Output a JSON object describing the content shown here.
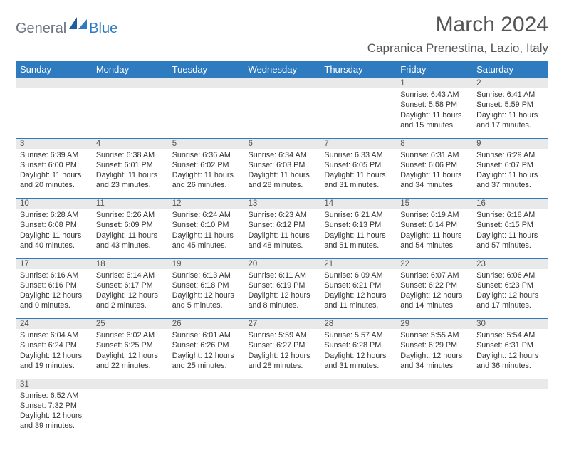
{
  "branding": {
    "word1": "General",
    "word2": "Blue"
  },
  "header": {
    "month_title": "March 2024",
    "location": "Capranica Prenestina, Lazio, Italy"
  },
  "colors": {
    "header_bg": "#2f7bbf",
    "header_text": "#ffffff",
    "daynum_bg": "#e9e9e9",
    "border": "#2f7bbf",
    "body_text": "#333333",
    "logo_gray": "#6b7280",
    "logo_blue": "#2f7bbf",
    "page_bg": "#ffffff"
  },
  "typography": {
    "title_fontsize": 30,
    "location_fontsize": 17,
    "weekday_fontsize": 13,
    "daynum_fontsize": 11.5,
    "cell_fontsize": 10.8,
    "font_family": "Arial"
  },
  "weekdays": [
    "Sunday",
    "Monday",
    "Tuesday",
    "Wednesday",
    "Thursday",
    "Friday",
    "Saturday"
  ],
  "weeks": [
    {
      "nums": [
        "",
        "",
        "",
        "",
        "",
        "1",
        "2"
      ],
      "cells": [
        null,
        null,
        null,
        null,
        null,
        {
          "sunrise": "Sunrise: 6:43 AM",
          "sunset": "Sunset: 5:58 PM",
          "daylight": "Daylight: 11 hours and 15 minutes."
        },
        {
          "sunrise": "Sunrise: 6:41 AM",
          "sunset": "Sunset: 5:59 PM",
          "daylight": "Daylight: 11 hours and 17 minutes."
        }
      ]
    },
    {
      "nums": [
        "3",
        "4",
        "5",
        "6",
        "7",
        "8",
        "9"
      ],
      "cells": [
        {
          "sunrise": "Sunrise: 6:39 AM",
          "sunset": "Sunset: 6:00 PM",
          "daylight": "Daylight: 11 hours and 20 minutes."
        },
        {
          "sunrise": "Sunrise: 6:38 AM",
          "sunset": "Sunset: 6:01 PM",
          "daylight": "Daylight: 11 hours and 23 minutes."
        },
        {
          "sunrise": "Sunrise: 6:36 AM",
          "sunset": "Sunset: 6:02 PM",
          "daylight": "Daylight: 11 hours and 26 minutes."
        },
        {
          "sunrise": "Sunrise: 6:34 AM",
          "sunset": "Sunset: 6:03 PM",
          "daylight": "Daylight: 11 hours and 28 minutes."
        },
        {
          "sunrise": "Sunrise: 6:33 AM",
          "sunset": "Sunset: 6:05 PM",
          "daylight": "Daylight: 11 hours and 31 minutes."
        },
        {
          "sunrise": "Sunrise: 6:31 AM",
          "sunset": "Sunset: 6:06 PM",
          "daylight": "Daylight: 11 hours and 34 minutes."
        },
        {
          "sunrise": "Sunrise: 6:29 AM",
          "sunset": "Sunset: 6:07 PM",
          "daylight": "Daylight: 11 hours and 37 minutes."
        }
      ]
    },
    {
      "nums": [
        "10",
        "11",
        "12",
        "13",
        "14",
        "15",
        "16"
      ],
      "cells": [
        {
          "sunrise": "Sunrise: 6:28 AM",
          "sunset": "Sunset: 6:08 PM",
          "daylight": "Daylight: 11 hours and 40 minutes."
        },
        {
          "sunrise": "Sunrise: 6:26 AM",
          "sunset": "Sunset: 6:09 PM",
          "daylight": "Daylight: 11 hours and 43 minutes."
        },
        {
          "sunrise": "Sunrise: 6:24 AM",
          "sunset": "Sunset: 6:10 PM",
          "daylight": "Daylight: 11 hours and 45 minutes."
        },
        {
          "sunrise": "Sunrise: 6:23 AM",
          "sunset": "Sunset: 6:12 PM",
          "daylight": "Daylight: 11 hours and 48 minutes."
        },
        {
          "sunrise": "Sunrise: 6:21 AM",
          "sunset": "Sunset: 6:13 PM",
          "daylight": "Daylight: 11 hours and 51 minutes."
        },
        {
          "sunrise": "Sunrise: 6:19 AM",
          "sunset": "Sunset: 6:14 PM",
          "daylight": "Daylight: 11 hours and 54 minutes."
        },
        {
          "sunrise": "Sunrise: 6:18 AM",
          "sunset": "Sunset: 6:15 PM",
          "daylight": "Daylight: 11 hours and 57 minutes."
        }
      ]
    },
    {
      "nums": [
        "17",
        "18",
        "19",
        "20",
        "21",
        "22",
        "23"
      ],
      "cells": [
        {
          "sunrise": "Sunrise: 6:16 AM",
          "sunset": "Sunset: 6:16 PM",
          "daylight": "Daylight: 12 hours and 0 minutes."
        },
        {
          "sunrise": "Sunrise: 6:14 AM",
          "sunset": "Sunset: 6:17 PM",
          "daylight": "Daylight: 12 hours and 2 minutes."
        },
        {
          "sunrise": "Sunrise: 6:13 AM",
          "sunset": "Sunset: 6:18 PM",
          "daylight": "Daylight: 12 hours and 5 minutes."
        },
        {
          "sunrise": "Sunrise: 6:11 AM",
          "sunset": "Sunset: 6:19 PM",
          "daylight": "Daylight: 12 hours and 8 minutes."
        },
        {
          "sunrise": "Sunrise: 6:09 AM",
          "sunset": "Sunset: 6:21 PM",
          "daylight": "Daylight: 12 hours and 11 minutes."
        },
        {
          "sunrise": "Sunrise: 6:07 AM",
          "sunset": "Sunset: 6:22 PM",
          "daylight": "Daylight: 12 hours and 14 minutes."
        },
        {
          "sunrise": "Sunrise: 6:06 AM",
          "sunset": "Sunset: 6:23 PM",
          "daylight": "Daylight: 12 hours and 17 minutes."
        }
      ]
    },
    {
      "nums": [
        "24",
        "25",
        "26",
        "27",
        "28",
        "29",
        "30"
      ],
      "cells": [
        {
          "sunrise": "Sunrise: 6:04 AM",
          "sunset": "Sunset: 6:24 PM",
          "daylight": "Daylight: 12 hours and 19 minutes."
        },
        {
          "sunrise": "Sunrise: 6:02 AM",
          "sunset": "Sunset: 6:25 PM",
          "daylight": "Daylight: 12 hours and 22 minutes."
        },
        {
          "sunrise": "Sunrise: 6:01 AM",
          "sunset": "Sunset: 6:26 PM",
          "daylight": "Daylight: 12 hours and 25 minutes."
        },
        {
          "sunrise": "Sunrise: 5:59 AM",
          "sunset": "Sunset: 6:27 PM",
          "daylight": "Daylight: 12 hours and 28 minutes."
        },
        {
          "sunrise": "Sunrise: 5:57 AM",
          "sunset": "Sunset: 6:28 PM",
          "daylight": "Daylight: 12 hours and 31 minutes."
        },
        {
          "sunrise": "Sunrise: 5:55 AM",
          "sunset": "Sunset: 6:29 PM",
          "daylight": "Daylight: 12 hours and 34 minutes."
        },
        {
          "sunrise": "Sunrise: 5:54 AM",
          "sunset": "Sunset: 6:31 PM",
          "daylight": "Daylight: 12 hours and 36 minutes."
        }
      ]
    },
    {
      "nums": [
        "31",
        "",
        "",
        "",
        "",
        "",
        ""
      ],
      "cells": [
        {
          "sunrise": "Sunrise: 6:52 AM",
          "sunset": "Sunset: 7:32 PM",
          "daylight": "Daylight: 12 hours and 39 minutes."
        },
        null,
        null,
        null,
        null,
        null,
        null
      ]
    }
  ]
}
